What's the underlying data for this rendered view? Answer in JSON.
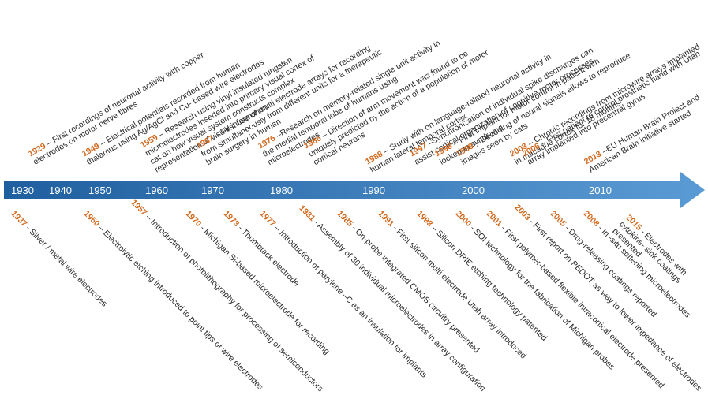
{
  "colors": {
    "arrow_dark": "#1f5f9f",
    "arrow_light": "#5b9bd5",
    "year": "#d2691e",
    "text": "#2a2a2a"
  },
  "decades": [
    "1930",
    "1940",
    "1950",
    "1960",
    "1970",
    "1980",
    "1990",
    "2000",
    "2010"
  ],
  "above": [
    {
      "year": "1929",
      "lines": [
        "– First recordings of neuronal activity with copper",
        "electrodes on motor nerve fibres"
      ]
    },
    {
      "year": "1949",
      "lines": [
        "– Electrical potentials recorded from human",
        "thalamus using Ag/AgCl and Cu- based wire electrodes"
      ]
    },
    {
      "year": "1959",
      "lines": [
        "– Research using vinyl insulated tungsten",
        "microelectrodes inserted into primary visual cortex of",
        "cat on how visual system constructs complex",
        "representation of visual information"
      ]
    },
    {
      "year": "1967",
      "lines": [
        "– First use of multi electrode arrays for recording",
        "from simultaneously from different units for a therapeutic",
        "brain surgery in human"
      ]
    },
    {
      "year": "1976",
      "lines": [
        "–Research on memory-related single unit activity in",
        "the medial temporal lobe of humans using",
        "microelectrodes"
      ]
    },
    {
      "year": "1986",
      "lines": [
        "– Direction of arm movement was found to be",
        "uniquely predicted by the action of a population of motor",
        "cortical neurons"
      ]
    },
    {
      "year": "1988",
      "lines": [
        "– Study with on language-related neuronal activity in",
        "human lateral temporal cortex"
      ]
    },
    {
      "year": "1997",
      "lines": [
        "–Synchronization of individual spike discharges can",
        "assist cortical organization of cognitive motor processes"
      ]
    },
    {
      "year": "1998",
      "lines": [
        "– First implant for motor control in patient with",
        "locked-in syndrome"
      ]
    },
    {
      "year": "1999",
      "lines": [
        "– Decoding of neural signals allows to reproduce",
        "images seen by cats"
      ]
    },
    {
      "year": "2003",
      "lines": [
        "– Chronic recordings from microwire arrays implanted",
        "in macaque cortex for 18 months"
      ]
    },
    {
      "year": "2006",
      "lines": [
        "– First patient to control prosthetic hand with Utah",
        "array implanted into precentral gyrus"
      ]
    },
    {
      "year": "2013",
      "lines": [
        "–EU Human Brain Project and",
        "American Brain initiative started"
      ]
    }
  ],
  "below": [
    {
      "year": "1937",
      "lines": [
        "- Silver / metal wire electrodes"
      ]
    },
    {
      "year": "1950",
      "lines": [
        "– Electrolytic etching introduced to point tips of wire electrodes"
      ]
    },
    {
      "year": "1957",
      "lines": [
        "– Introduction of photolithography for processing of semiconductors"
      ]
    },
    {
      "year": "1970",
      "lines": [
        "- Michigan Si-based microelectrode for recording"
      ]
    },
    {
      "year": "1973",
      "lines": [
        "- Thumbtack electrode"
      ]
    },
    {
      "year": "1977",
      "lines": [
        "– Introduction of parylene –C as an insulation for implants"
      ]
    },
    {
      "year": "1981",
      "lines": [
        "- Assembly of 30 individual microelectrodes in array configuration"
      ]
    },
    {
      "year": "1985",
      "lines": [
        "- On-probe integrated CMOS circuitry presented"
      ]
    },
    {
      "year": "1991",
      "lines": [
        "- First silicon multi electrode Utah array introduced"
      ]
    },
    {
      "year": "1993",
      "lines": [
        "– Silicon DRIE etching technology patented"
      ]
    },
    {
      "year": "2000",
      "lines": [
        "- SOI technology for the fabrication of Michigan probes"
      ]
    },
    {
      "year": "2001",
      "lines": [
        "- First polymer-based flexible intracortical electrode presented"
      ]
    },
    {
      "year": "2003",
      "lines": [
        "- First report on PEDOT as way to lower impedance of electrodes"
      ]
    },
    {
      "year": "2005",
      "lines": [
        "- Drug-releasing coatings reported"
      ]
    },
    {
      "year": "2008",
      "lines": [
        "- In -situ softening microelectrodes"
      ]
    },
    {
      "year": "2015",
      "lines": [
        "- Electrodes with",
        "cytokine- sink coatings",
        "presented"
      ]
    }
  ]
}
